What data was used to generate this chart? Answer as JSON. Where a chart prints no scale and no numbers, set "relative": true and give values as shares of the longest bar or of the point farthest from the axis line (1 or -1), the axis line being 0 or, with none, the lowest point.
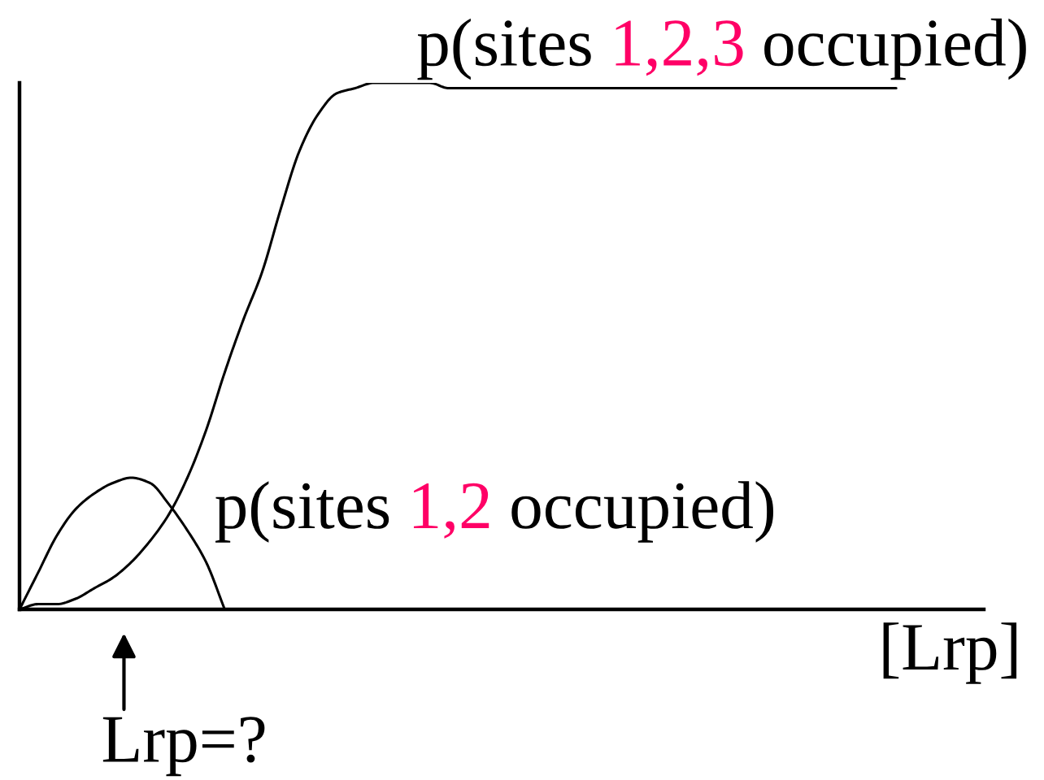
{
  "chart_data": {
    "type": "line",
    "relative": true,
    "xlabel": "[Lrp]",
    "line_style": "solid",
    "categories": [
      null,
      null,
      null,
      null,
      null,
      null,
      null,
      null,
      null,
      null,
      null,
      null,
      null,
      null,
      null,
      null,
      null,
      null,
      null,
      null,
      null,
      null,
      null,
      null,
      null,
      null,
      null,
      null,
      null,
      null,
      null,
      null,
      null,
      null,
      null,
      null,
      null,
      null,
      null,
      null,
      null,
      null,
      null,
      null,
      null,
      null,
      null,
      null
    ],
    "series": [
      {
        "name": "p(sites 1,2,3 occupied)",
        "color": "#000000",
        "values": [
          0,
          0.01,
          0.01,
          0.02,
          0.04,
          0.06,
          0.09,
          0.13,
          0.18,
          0.25,
          0.34,
          0.45,
          0.55,
          0.64,
          0.76,
          0.87,
          0.94,
          0.98,
          0.99,
          1,
          1,
          1,
          1,
          0.99,
          0.99,
          0.99,
          0.99,
          0.99,
          0.99,
          0.99,
          0.99,
          0.99,
          0.99,
          0.99,
          0.99,
          0.99,
          0.99,
          0.99,
          0.99,
          0.99,
          0.99,
          0.99,
          0.99,
          0.99,
          0.99,
          0.99,
          0.99,
          0.99
        ]
      },
      {
        "name": "p(sites 1,2 occupied)",
        "color": "#000000",
        "values": [
          0,
          0.07,
          0.14,
          0.19,
          0.22,
          0.24,
          0.25,
          0.24,
          0.2,
          0.15,
          0.09,
          0,
          null,
          null,
          null,
          null,
          null,
          null,
          null,
          null,
          null,
          null,
          null,
          null,
          null,
          null,
          null,
          null,
          null,
          null,
          null,
          null,
          null,
          null,
          null,
          null,
          null,
          null,
          null,
          null,
          null,
          null,
          null,
          null,
          null,
          null,
          null,
          null
        ]
      }
    ],
    "annotations": [
      "Lrp=?"
    ]
  }
}
